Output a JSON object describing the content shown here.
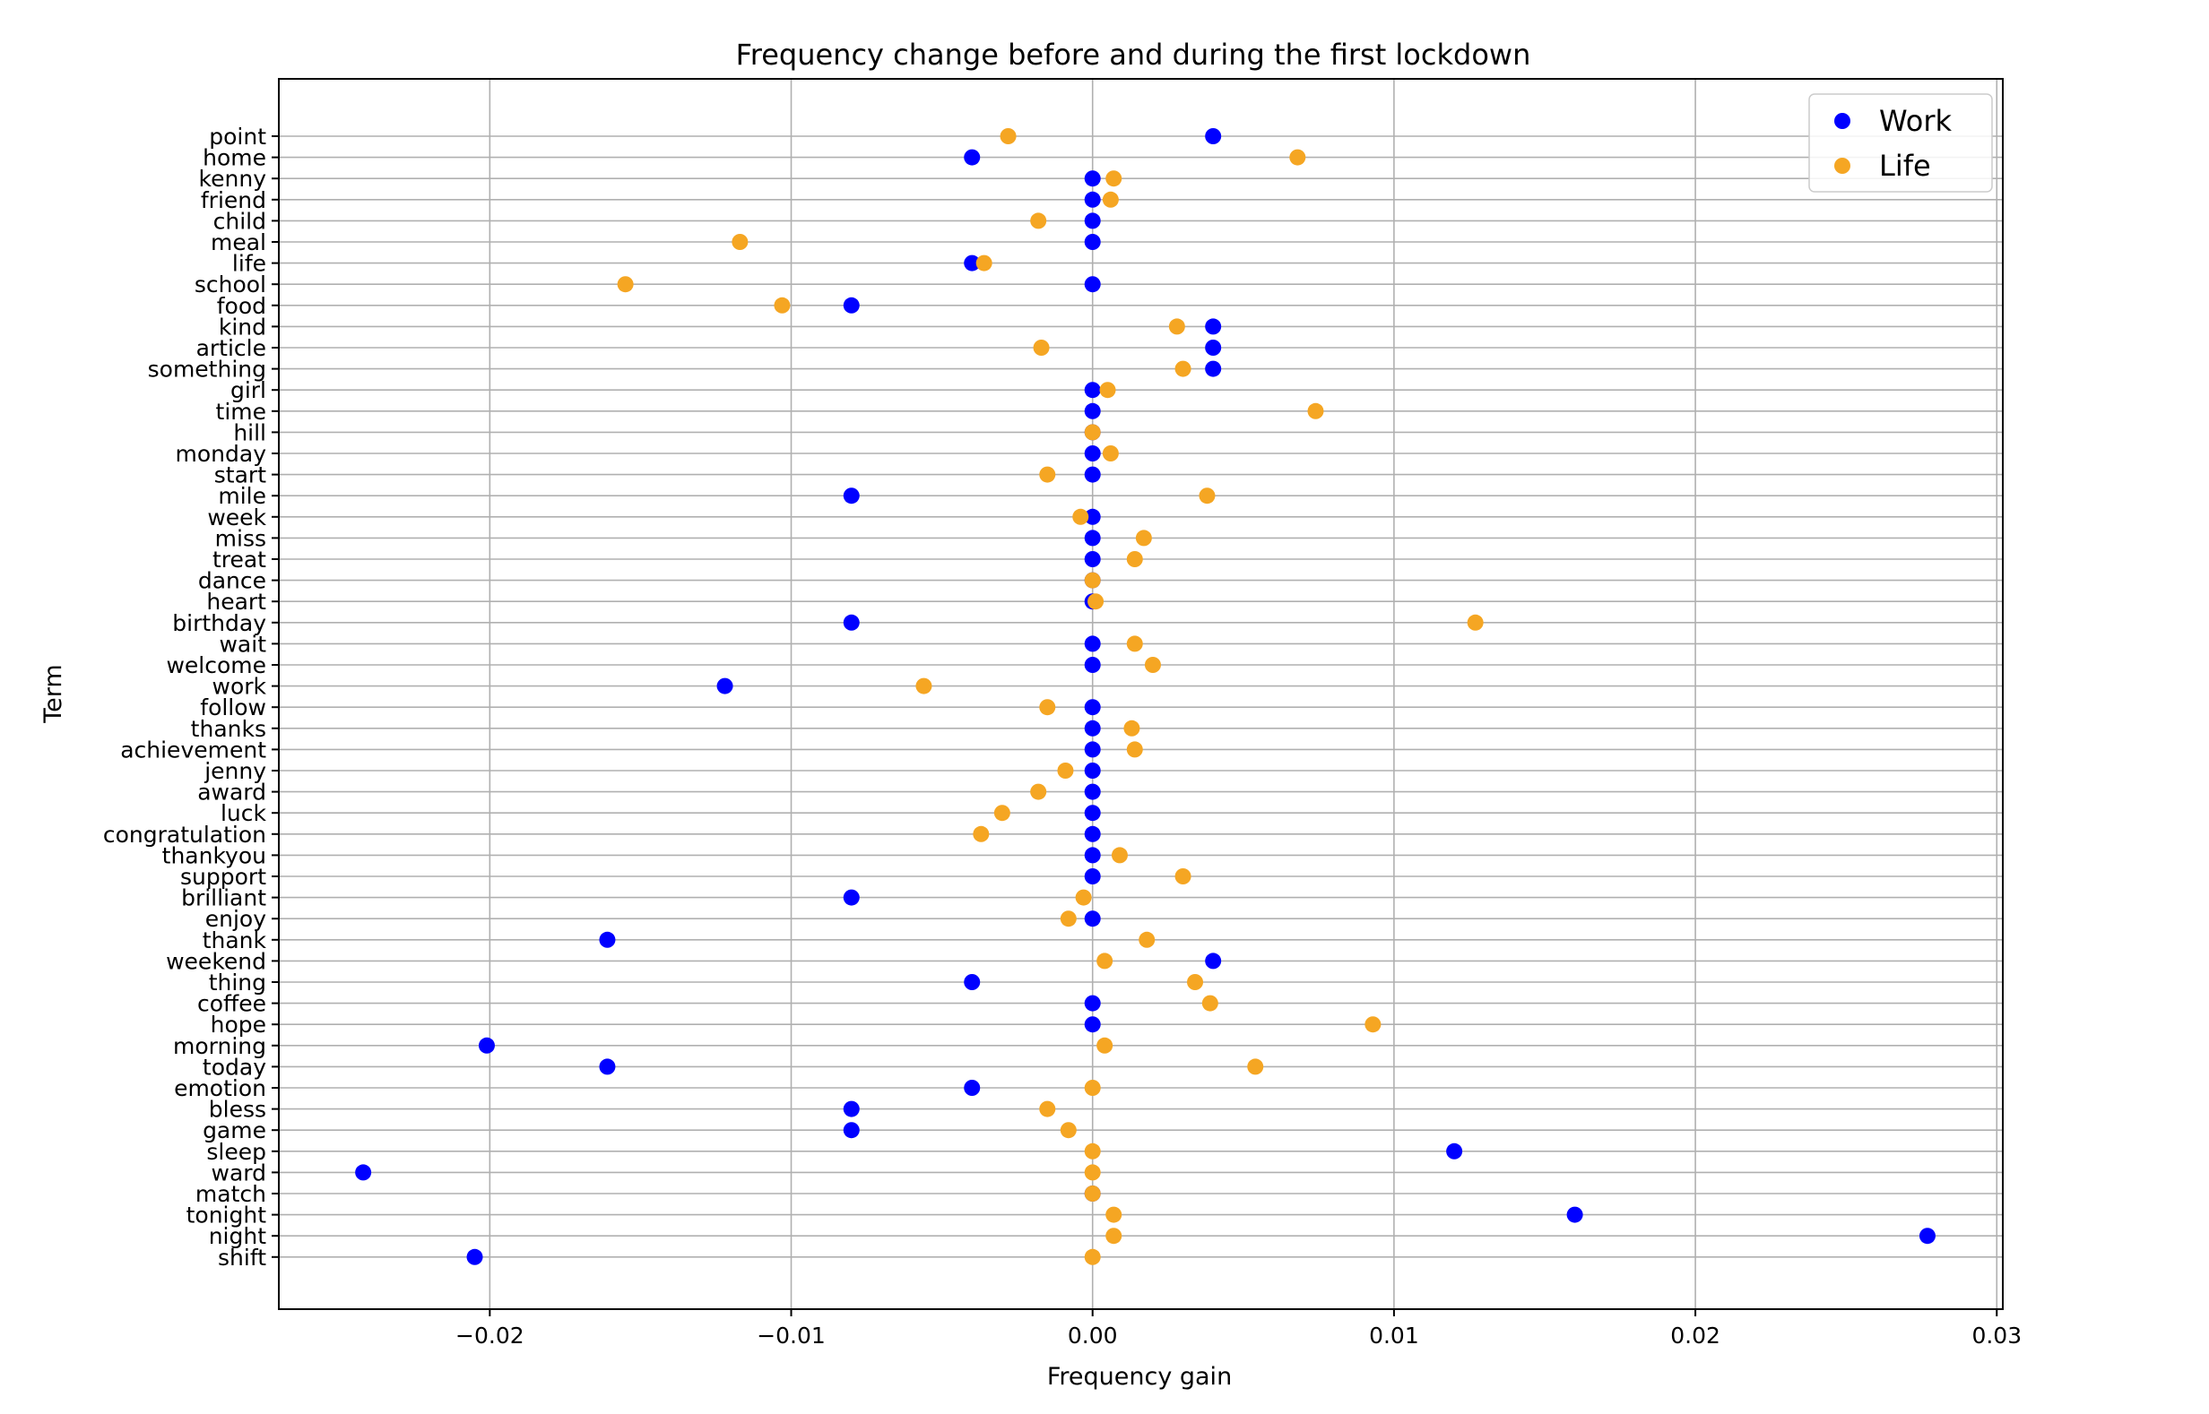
{
  "chart_data": {
    "type": "scatter",
    "title": "Frequency change before and during the first lockdown",
    "xlabel": "Frequency gain",
    "ylabel": "Term",
    "xlim": [
      -0.027,
      0.0302
    ],
    "xticks": [
      -0.02,
      -0.01,
      0.0,
      0.01,
      0.02,
      0.03
    ],
    "xtick_labels": [
      "−0.02",
      "−0.01",
      "0.00",
      "0.01",
      "0.02",
      "0.03"
    ],
    "grid": true,
    "legend_position": "top-right",
    "categories": [
      "point",
      "home",
      "kenny",
      "friend",
      "child",
      "meal",
      "life",
      "school",
      "food",
      "kind",
      "article",
      "something",
      "girl",
      "time",
      "hill",
      "monday",
      "start",
      "mile",
      "week",
      "miss",
      "treat",
      "dance",
      "heart",
      "birthday",
      "wait",
      "welcome",
      "work",
      "follow",
      "thanks",
      "achievement",
      "jenny",
      "award",
      "luck",
      "congratulation",
      "thankyou",
      "support",
      "brilliant",
      "enjoy",
      "thank",
      "weekend",
      "thing",
      "coffee",
      "hope",
      "morning",
      "today",
      "emotion",
      "bless",
      "game",
      "sleep",
      "ward",
      "match",
      "tonight",
      "night",
      "shift"
    ],
    "series": [
      {
        "name": "Work",
        "color": "#0000ff",
        "values": [
          0.004,
          -0.004,
          0.0,
          0.0,
          0.0,
          0.0,
          -0.004,
          0.0,
          -0.008,
          0.004,
          0.004,
          0.004,
          0.0,
          0.0,
          0.0,
          0.0,
          0.0,
          -0.008,
          0.0,
          0.0,
          0.0,
          0.0,
          0.0,
          -0.008,
          0.0,
          0.0,
          -0.0122,
          0.0,
          0.0,
          0.0,
          0.0,
          0.0,
          0.0,
          0.0,
          0.0,
          0.0,
          -0.008,
          0.0,
          -0.0161,
          0.004,
          -0.004,
          0.0,
          0.0,
          -0.0201,
          -0.0161,
          -0.004,
          -0.008,
          -0.008,
          0.012,
          -0.0242,
          0.0,
          0.016,
          0.0277,
          -0.0205
        ]
      },
      {
        "name": "Life",
        "color": "#f5a623",
        "values": [
          -0.0028,
          0.0068,
          0.0007,
          0.0006,
          -0.0018,
          -0.0117,
          -0.0036,
          -0.0155,
          -0.0103,
          0.0028,
          -0.0017,
          0.003,
          0.0005,
          0.0074,
          0.0,
          0.0006,
          -0.0015,
          0.0038,
          -0.0004,
          0.0017,
          0.0014,
          0.0,
          0.0001,
          0.0127,
          0.0014,
          0.002,
          -0.0056,
          -0.0015,
          0.0013,
          0.0014,
          -0.0009,
          -0.0018,
          -0.003,
          -0.0037,
          0.0009,
          0.003,
          -0.0003,
          -0.0008,
          0.0018,
          0.0004,
          0.0034,
          0.0039,
          0.0093,
          0.0004,
          0.0054,
          0.0,
          -0.0015,
          -0.0008,
          0.0,
          0.0,
          0.0,
          0.0007,
          0.0007,
          0.0
        ]
      }
    ]
  }
}
